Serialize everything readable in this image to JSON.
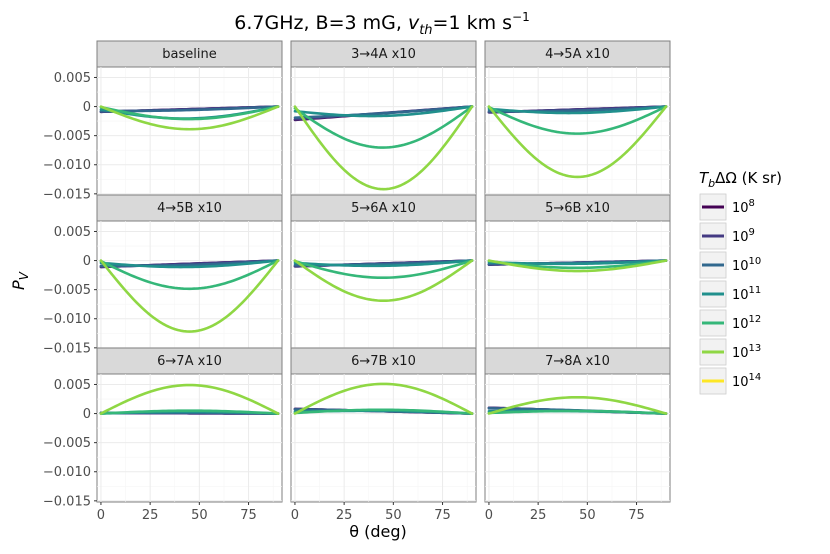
{
  "chart_data": {
    "type": "line",
    "title": "6.7GHz, B=3 mG, v_th=1 km s^-1",
    "title_parts": {
      "lead": "6.7GHz, B=3 mG, ",
      "v": "v",
      "vsub": "th",
      "tail": "=1 km s",
      "sup": "−1"
    },
    "xlabel": "θ (deg)",
    "ylabel": "P",
    "ylabel_sub": "V",
    "xlim": [
      -2,
      92
    ],
    "ylim": [
      -0.0152,
      0.0068
    ],
    "x_ticks": [
      0,
      25,
      50,
      75
    ],
    "x_tick_labels": [
      "0",
      "25",
      "50",
      "75"
    ],
    "y_ticks": [
      0.005,
      0,
      -0.005,
      -0.01,
      -0.015
    ],
    "y_tick_labels": [
      "0.005",
      "0",
      "−0.005",
      "−0.010",
      "−0.015"
    ],
    "legend": {
      "title_base": "T",
      "title_sub": "b",
      "title_rest": "ΔΩ (K sr)",
      "entries": [
        {
          "base": "10",
          "exp": "8",
          "color": "#440154"
        },
        {
          "base": "10",
          "exp": "9",
          "color": "#443a83"
        },
        {
          "base": "10",
          "exp": "10",
          "color": "#31688e"
        },
        {
          "base": "10",
          "exp": "11",
          "color": "#21908d"
        },
        {
          "base": "10",
          "exp": "12",
          "color": "#35b779"
        },
        {
          "base": "10",
          "exp": "13",
          "color": "#8fd744"
        },
        {
          "base": "10",
          "exp": "14",
          "color": "#fde725"
        }
      ]
    },
    "panels": [
      {
        "label": "baseline",
        "series": [
          {
            "tb": "1e8",
            "p0": -0.0009,
            "p90": 0.0,
            "amp": 0.0,
            "color": "#440154"
          },
          {
            "tb": "1e9",
            "p0": -0.0009,
            "p90": 0.0,
            "amp": 0.0,
            "color": "#443a83"
          },
          {
            "tb": "1e10",
            "p0": -0.0008,
            "p90": 0.0,
            "amp": -0.0002,
            "color": "#31688e"
          },
          {
            "tb": "1e11",
            "p0": -0.0005,
            "p90": 0.0,
            "amp": -0.0018,
            "color": "#21908d"
          },
          {
            "tb": "1e12",
            "p0": -0.0001,
            "p90": 0.0,
            "amp": -0.0021,
            "color": "#35b779"
          },
          {
            "tb": "1e13",
            "p0": 0.0,
            "p90": 0.0,
            "amp": -0.0039,
            "color": "#8fd744"
          }
        ]
      },
      {
        "label": "3→4A x10",
        "series": [
          {
            "tb": "1e8",
            "p0": -0.0023,
            "p90": 0.0,
            "amp": 0.0,
            "color": "#440154"
          },
          {
            "tb": "1e9",
            "p0": -0.0022,
            "p90": 0.0,
            "amp": 0.0,
            "color": "#443a83"
          },
          {
            "tb": "1e10",
            "p0": -0.0019,
            "p90": 0.0,
            "amp": -0.0002,
            "color": "#31688e"
          },
          {
            "tb": "1e11",
            "p0": -0.0008,
            "p90": 0.0,
            "amp": -0.0012,
            "color": "#21908d"
          },
          {
            "tb": "1e12",
            "p0": -0.0003,
            "p90": 0.0,
            "amp": -0.0069,
            "color": "#35b779"
          },
          {
            "tb": "1e13",
            "p0": 0.0,
            "p90": 0.0,
            "amp": -0.0142,
            "color": "#8fd744"
          }
        ]
      },
      {
        "label": "4→5A x10",
        "series": [
          {
            "tb": "1e8",
            "p0": -0.001,
            "p90": 0.0,
            "amp": 0.0,
            "color": "#440154"
          },
          {
            "tb": "1e9",
            "p0": -0.001,
            "p90": 0.0,
            "amp": 0.0,
            "color": "#443a83"
          },
          {
            "tb": "1e10",
            "p0": -0.0008,
            "p90": 0.0,
            "amp": -0.0003,
            "color": "#31688e"
          },
          {
            "tb": "1e11",
            "p0": -0.0004,
            "p90": 0.0,
            "amp": -0.0009,
            "color": "#21908d"
          },
          {
            "tb": "1e12",
            "p0": -0.0001,
            "p90": 0.0,
            "amp": -0.0046,
            "color": "#35b779"
          },
          {
            "tb": "1e13",
            "p0": 0.0,
            "p90": 0.0,
            "amp": -0.0121,
            "color": "#8fd744"
          }
        ]
      },
      {
        "label": "4→5B x10",
        "series": [
          {
            "tb": "1e8",
            "p0": -0.0011,
            "p90": 0.0,
            "amp": 0.0,
            "color": "#440154"
          },
          {
            "tb": "1e9",
            "p0": -0.0011,
            "p90": 0.0,
            "amp": 0.0,
            "color": "#443a83"
          },
          {
            "tb": "1e10",
            "p0": -0.0009,
            "p90": 0.0,
            "amp": -0.0003,
            "color": "#31688e"
          },
          {
            "tb": "1e11",
            "p0": -0.0004,
            "p90": 0.0,
            "amp": -0.0009,
            "color": "#21908d"
          },
          {
            "tb": "1e12",
            "p0": -0.0001,
            "p90": 0.0,
            "amp": -0.0048,
            "color": "#35b779"
          },
          {
            "tb": "1e13",
            "p0": 0.0,
            "p90": 0.0,
            "amp": -0.0122,
            "color": "#8fd744"
          }
        ]
      },
      {
        "label": "5→6A x10",
        "series": [
          {
            "tb": "1e8",
            "p0": -0.001,
            "p90": 0.0,
            "amp": 0.0,
            "color": "#440154"
          },
          {
            "tb": "1e9",
            "p0": -0.001,
            "p90": 0.0,
            "amp": 0.0,
            "color": "#443a83"
          },
          {
            "tb": "1e10",
            "p0": -0.0008,
            "p90": 0.0,
            "amp": -0.0002,
            "color": "#31688e"
          },
          {
            "tb": "1e11",
            "p0": -0.0004,
            "p90": 0.0,
            "amp": -0.0007,
            "color": "#21908d"
          },
          {
            "tb": "1e12",
            "p0": -0.0001,
            "p90": 0.0,
            "amp": -0.0029,
            "color": "#35b779"
          },
          {
            "tb": "1e13",
            "p0": 0.0,
            "p90": 0.0,
            "amp": -0.0069,
            "color": "#8fd744"
          }
        ]
      },
      {
        "label": "5→6B x10",
        "series": [
          {
            "tb": "1e8",
            "p0": -0.0007,
            "p90": 0.0,
            "amp": 0.0,
            "color": "#440154"
          },
          {
            "tb": "1e9",
            "p0": -0.0007,
            "p90": 0.0,
            "amp": 0.0,
            "color": "#443a83"
          },
          {
            "tb": "1e10",
            "p0": -0.0006,
            "p90": 0.0,
            "amp": -0.0001,
            "color": "#31688e"
          },
          {
            "tb": "1e11",
            "p0": -0.0003,
            "p90": 0.0,
            "amp": -0.0004,
            "color": "#21908d"
          },
          {
            "tb": "1e12",
            "p0": -0.0001,
            "p90": 0.0,
            "amp": -0.0012,
            "color": "#35b779"
          },
          {
            "tb": "1e13",
            "p0": 0.0,
            "p90": 0.0,
            "amp": -0.0018,
            "color": "#8fd744"
          }
        ]
      },
      {
        "label": "6→7A x10",
        "series": [
          {
            "tb": "1e8",
            "p0": 0.0001,
            "p90": 0.0,
            "amp": 0.0,
            "color": "#440154"
          },
          {
            "tb": "1e9",
            "p0": 0.0001,
            "p90": 0.0,
            "amp": 0.0,
            "color": "#443a83"
          },
          {
            "tb": "1e10",
            "p0": 0.0001,
            "p90": 0.0,
            "amp": 0.0001,
            "color": "#31688e"
          },
          {
            "tb": "1e11",
            "p0": 0.0,
            "p90": 0.0,
            "amp": 0.0003,
            "color": "#21908d"
          },
          {
            "tb": "1e12",
            "p0": 0.0,
            "p90": 0.0,
            "amp": 0.0005,
            "color": "#35b779"
          },
          {
            "tb": "1e13",
            "p0": 0.0,
            "p90": 0.0,
            "amp": 0.0049,
            "color": "#8fd744"
          }
        ]
      },
      {
        "label": "6→7B x10",
        "series": [
          {
            "tb": "1e8",
            "p0": 0.0008,
            "p90": 0.0,
            "amp": 0.0,
            "color": "#440154"
          },
          {
            "tb": "1e9",
            "p0": 0.0008,
            "p90": 0.0,
            "amp": 0.0,
            "color": "#443a83"
          },
          {
            "tb": "1e10",
            "p0": 0.0007,
            "p90": 0.0,
            "amp": 0.0001,
            "color": "#31688e"
          },
          {
            "tb": "1e11",
            "p0": 0.0003,
            "p90": 0.0,
            "amp": 0.0003,
            "color": "#21908d"
          },
          {
            "tb": "1e12",
            "p0": 0.0001,
            "p90": 0.0,
            "amp": 0.0006,
            "color": "#35b779"
          },
          {
            "tb": "1e13",
            "p0": 0.0,
            "p90": 0.0,
            "amp": 0.0051,
            "color": "#8fd744"
          }
        ]
      },
      {
        "label": "7→8A x10",
        "series": [
          {
            "tb": "1e8",
            "p0": 0.001,
            "p90": 0.0,
            "amp": 0.0,
            "color": "#440154"
          },
          {
            "tb": "1e9",
            "p0": 0.001,
            "p90": 0.0,
            "amp": 0.0,
            "color": "#443a83"
          },
          {
            "tb": "1e10",
            "p0": 0.0009,
            "p90": 0.0,
            "amp": 0.0001,
            "color": "#31688e"
          },
          {
            "tb": "1e11",
            "p0": 0.0004,
            "p90": 0.0,
            "amp": 0.0002,
            "color": "#21908d"
          },
          {
            "tb": "1e12",
            "p0": 0.0001,
            "p90": 0.0,
            "amp": 0.0004,
            "color": "#35b779"
          },
          {
            "tb": "1e13",
            "p0": 0.0,
            "p90": 0.0,
            "amp": 0.0028,
            "color": "#8fd744"
          }
        ]
      }
    ]
  }
}
